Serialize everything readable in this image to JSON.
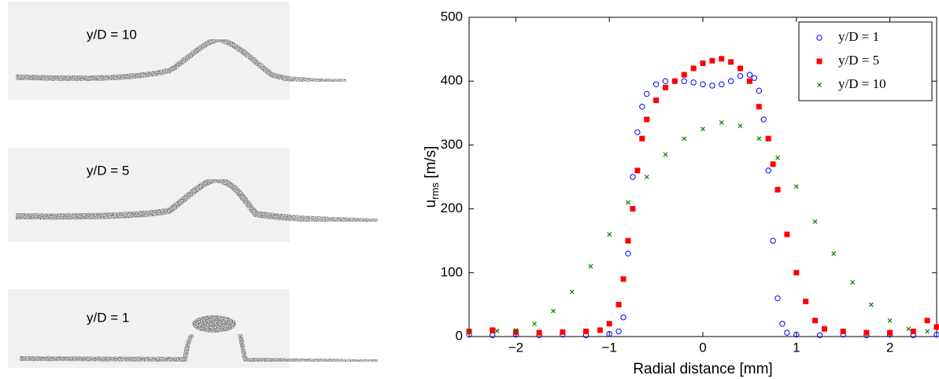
{
  "panels": [
    {
      "label": "y/D = 10"
    },
    {
      "label": "y/D = 5"
    },
    {
      "label": "y/D = 1"
    }
  ],
  "chart_data": {
    "type": "scatter",
    "xlabel": "Radial distance [mm]",
    "ylabel_main": "u",
    "ylabel_sub": "rms",
    "ylabel_unit": " [m/s]",
    "xlim": [
      -2.5,
      2.5
    ],
    "xticks": [
      {
        "value": -2,
        "label": "−2"
      },
      {
        "value": -1,
        "label": "−1"
      },
      0,
      1,
      2
    ],
    "ylim": [
      0,
      500
    ],
    "yticks": [
      0,
      100,
      200,
      300,
      400,
      500
    ],
    "legend": "upper right",
    "series": [
      {
        "name": "y/D = 1",
        "color": "#0000ff",
        "marker": "circle",
        "x": [
          -2.5,
          -2.25,
          -2.0,
          -1.75,
          -1.5,
          -1.25,
          -1.0,
          -0.9,
          -0.85,
          -0.8,
          -0.75,
          -0.7,
          -0.65,
          -0.6,
          -0.5,
          -0.4,
          -0.3,
          -0.2,
          -0.1,
          0.0,
          0.1,
          0.2,
          0.3,
          0.4,
          0.5,
          0.55,
          0.6,
          0.65,
          0.7,
          0.75,
          0.8,
          0.85,
          0.9,
          1.0,
          1.25,
          1.5,
          1.75,
          2.0,
          2.25,
          2.5
        ],
        "values": [
          3,
          2,
          3,
          2,
          3,
          2,
          4,
          8,
          30,
          130,
          250,
          320,
          360,
          380,
          395,
          400,
          400,
          400,
          398,
          395,
          393,
          395,
          400,
          408,
          410,
          405,
          385,
          340,
          260,
          150,
          60,
          20,
          6,
          3,
          2,
          3,
          2,
          3,
          2,
          3
        ]
      },
      {
        "name": "y/D = 5",
        "color": "#ff0000",
        "marker": "square",
        "x": [
          -2.5,
          -2.25,
          -2.0,
          -1.75,
          -1.5,
          -1.25,
          -1.1,
          -1.0,
          -0.9,
          -0.85,
          -0.8,
          -0.75,
          -0.7,
          -0.65,
          -0.6,
          -0.5,
          -0.4,
          -0.3,
          -0.2,
          -0.1,
          0.0,
          0.1,
          0.2,
          0.3,
          0.4,
          0.5,
          0.6,
          0.7,
          0.75,
          0.8,
          0.9,
          1.0,
          1.1,
          1.2,
          1.3,
          1.5,
          1.75,
          2.0,
          2.25,
          2.4,
          2.5
        ],
        "values": [
          8,
          10,
          7,
          6,
          7,
          8,
          10,
          20,
          50,
          90,
          150,
          200,
          260,
          310,
          340,
          370,
          390,
          400,
          410,
          420,
          428,
          432,
          435,
          430,
          420,
          400,
          360,
          310,
          270,
          230,
          160,
          100,
          55,
          25,
          12,
          8,
          6,
          6,
          8,
          25,
          15
        ]
      },
      {
        "name": "y/D = 10",
        "color": "#008000",
        "marker": "x",
        "x": [
          -2.5,
          -2.2,
          -2.0,
          -1.8,
          -1.6,
          -1.4,
          -1.2,
          -1.0,
          -0.8,
          -0.6,
          -0.4,
          -0.2,
          0.0,
          0.2,
          0.4,
          0.6,
          0.8,
          1.0,
          1.2,
          1.4,
          1.6,
          1.8,
          2.0,
          2.2,
          2.4
        ],
        "values": [
          8,
          9,
          10,
          20,
          40,
          70,
          110,
          160,
          210,
          250,
          285,
          310,
          325,
          335,
          330,
          310,
          280,
          235,
          180,
          130,
          85,
          50,
          25,
          12,
          8
        ]
      }
    ]
  }
}
